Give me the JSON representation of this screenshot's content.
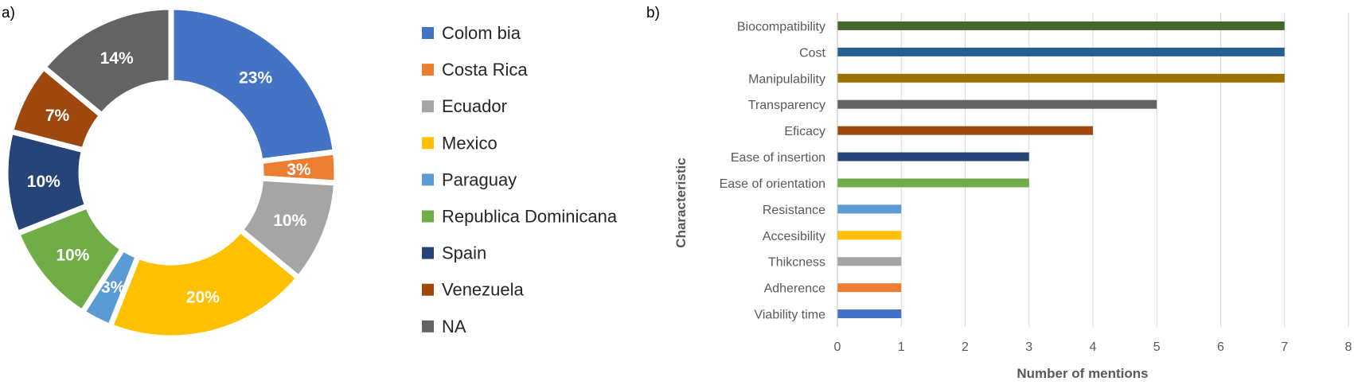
{
  "chart_data": [
    {
      "type": "pie",
      "panel_label": "a)",
      "title": "",
      "categories": [
        "Colom bia",
        "Costa Rica",
        "Ecuador",
        "Mexico",
        "Paraguay",
        "Republica Dominicana",
        "Spain",
        "Venezuela",
        "NA"
      ],
      "values": [
        23,
        3,
        10,
        20,
        3,
        10,
        10,
        7,
        14
      ],
      "data_labels": [
        "23%",
        "3%",
        "10%",
        "20%",
        "3%",
        "10%",
        "10%",
        "7%",
        "14%"
      ],
      "colors": [
        "#4472C4",
        "#ED7D31",
        "#A5A5A5",
        "#FFC000",
        "#5B9BD5",
        "#70AD47",
        "#264478",
        "#9E480E",
        "#636363"
      ],
      "label_colors": [
        "#ffffff",
        "#ffffff",
        "#ffffff",
        "#ffffff",
        "#ffffff",
        "#ffffff",
        "#ffffff",
        "#ffffff",
        "#ffffff"
      ],
      "donut": true,
      "legend_position": "right"
    },
    {
      "type": "bar",
      "orientation": "horizontal",
      "panel_label": "b)",
      "title": "",
      "categories": [
        "Biocompatibility",
        "Cost",
        "Manipulability",
        "Transparency",
        "Eficacy",
        "Ease of insertion",
        "Ease of orientation",
        "Resistance",
        "Accesibility",
        "Thikcness",
        "Adherence",
        "Viability time"
      ],
      "values": [
        7,
        7,
        7,
        5,
        4,
        3,
        3,
        1,
        1,
        1,
        1,
        1
      ],
      "colors": [
        "#43682B",
        "#255E91",
        "#997300",
        "#636363",
        "#9E480E",
        "#264478",
        "#70AD47",
        "#5B9BD5",
        "#FFC000",
        "#A5A5A5",
        "#ED7D31",
        "#4472C4"
      ],
      "xlabel": "Number of mentions",
      "ylabel": "Characteristic",
      "xlim": [
        0,
        8
      ],
      "xticks": [
        "0",
        "1",
        "2",
        "3",
        "4",
        "5",
        "6",
        "7",
        "8"
      ],
      "grid": true,
      "legend": false
    }
  ]
}
